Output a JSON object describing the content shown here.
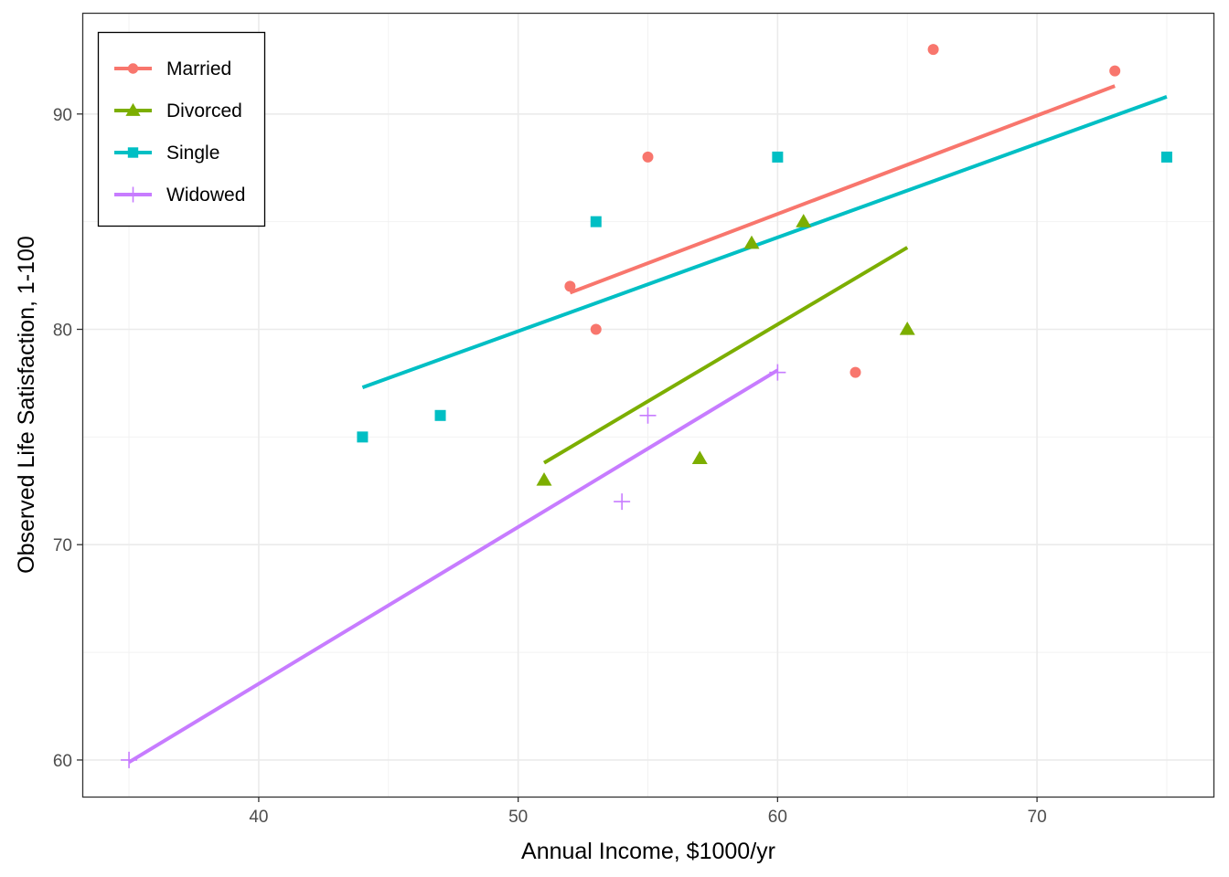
{
  "chart_data": {
    "type": "scatter",
    "title": "",
    "xlabel": "Annual Income, $1000/yr",
    "ylabel": "Observed Life Satisfaction, 1-100",
    "xlim": [
      33.2,
      76.8
    ],
    "ylim": [
      58.3,
      94.7
    ],
    "x_ticks": [
      40,
      50,
      60,
      70
    ],
    "x_minor_ticks": [
      35,
      45,
      55,
      65,
      75
    ],
    "y_ticks": [
      60,
      70,
      80,
      90
    ],
    "y_minor_ticks": [
      65,
      75,
      85
    ],
    "grid": true,
    "legend_position": "top-left",
    "series": [
      {
        "name": "Married",
        "color": "#F8766D",
        "marker": "circle",
        "points": [
          [
            52,
            82
          ],
          [
            53,
            80
          ],
          [
            55,
            88
          ],
          [
            63,
            78
          ],
          [
            66,
            93
          ],
          [
            73,
            92
          ]
        ],
        "fit": [
          [
            52,
            81.7
          ],
          [
            73,
            91.3
          ]
        ]
      },
      {
        "name": "Divorced",
        "color": "#7CAE00",
        "marker": "triangle",
        "points": [
          [
            51,
            73
          ],
          [
            57,
            74
          ],
          [
            59,
            84
          ],
          [
            61,
            85
          ],
          [
            65,
            80
          ]
        ],
        "fit": [
          [
            51,
            73.8
          ],
          [
            65,
            83.8
          ]
        ]
      },
      {
        "name": "Single",
        "color": "#00BFC4",
        "marker": "square",
        "points": [
          [
            44,
            75
          ],
          [
            47,
            76
          ],
          [
            53,
            85
          ],
          [
            60,
            88
          ],
          [
            75,
            88
          ]
        ],
        "fit": [
          [
            44,
            77.3
          ],
          [
            75,
            90.8
          ]
        ]
      },
      {
        "name": "Widowed",
        "color": "#C77CFF",
        "marker": "plus",
        "points": [
          [
            35,
            60
          ],
          [
            54,
            72
          ],
          [
            55,
            76
          ],
          [
            60,
            78
          ]
        ],
        "fit": [
          [
            35,
            59.9
          ],
          [
            60,
            78.1
          ]
        ]
      }
    ]
  }
}
